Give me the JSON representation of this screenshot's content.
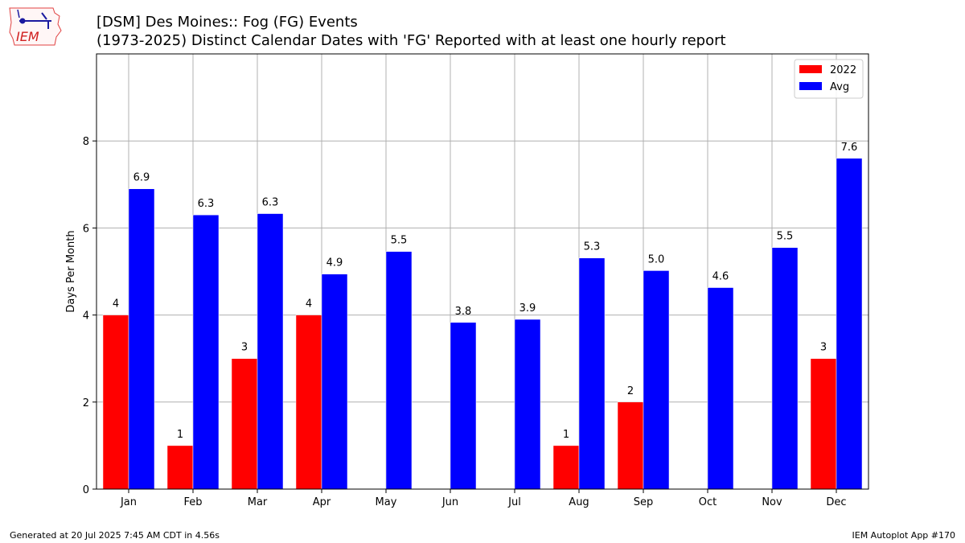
{
  "header": {
    "logo_text": "IEM",
    "title_line1": "[DSM] Des Moines:: Fog (FG) Events",
    "title_line2": "(1973-2025) Distinct Calendar Dates with 'FG' Reported with at least one hourly report"
  },
  "footer": {
    "left": "Generated at 20 Jul 2025 7:45 AM CDT in 4.56s",
    "right": "IEM Autoplot App #170"
  },
  "chart_data": {
    "type": "bar",
    "ylabel": "Days Per Month",
    "xlabel": "",
    "ylim": [
      0,
      10
    ],
    "yticks": [
      0,
      2,
      4,
      6,
      8
    ],
    "grid": true,
    "legend_position": "top-right",
    "categories": [
      "Jan",
      "Feb",
      "Mar",
      "Apr",
      "May",
      "Jun",
      "Jul",
      "Aug",
      "Sep",
      "Oct",
      "Nov",
      "Dec"
    ],
    "series": [
      {
        "name": "2022",
        "color": "#ff0000",
        "values": [
          4,
          1,
          3,
          4,
          0,
          0,
          0,
          1,
          2,
          0,
          0,
          3
        ],
        "labels": [
          "4",
          "1",
          "3",
          "4",
          "",
          "",
          "",
          "1",
          "2",
          "",
          "",
          "3"
        ]
      },
      {
        "name": "Avg",
        "color": "#0000ff",
        "values": [
          6.9,
          6.3,
          6.33,
          4.94,
          5.46,
          3.83,
          3.9,
          5.31,
          5.02,
          4.63,
          5.55,
          7.6
        ],
        "labels": [
          "6.9",
          "6.3",
          "6.3",
          "4.9",
          "5.5",
          "3.8",
          "3.9",
          "5.3",
          "5.0",
          "4.6",
          "5.5",
          "7.6"
        ]
      }
    ]
  }
}
